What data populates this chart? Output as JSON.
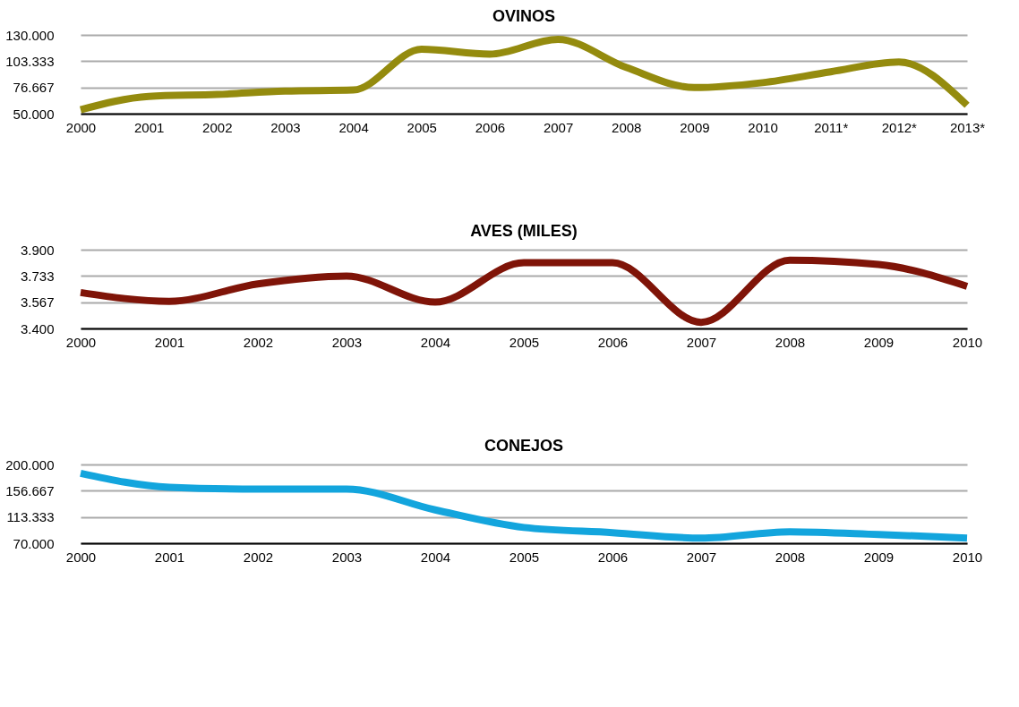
{
  "chart_data": [
    {
      "type": "line",
      "title": "OVINOS",
      "categories": [
        "2000",
        "2001",
        "2002",
        "2003",
        "2004",
        "2005",
        "2006",
        "2007",
        "2008",
        "2009",
        "2010",
        "2011*",
        "2012*",
        "2013*"
      ],
      "values": [
        54000,
        67500,
        69500,
        73000,
        74000,
        115500,
        110500,
        125500,
        97000,
        76500,
        81500,
        92500,
        102500,
        58500
      ],
      "color": "#948b0e",
      "ylim": [
        50000,
        130000
      ],
      "yticks": [
        {
          "value": 50000,
          "label": "50.000"
        },
        {
          "value": 76667,
          "label": "76.667"
        },
        {
          "value": 103333,
          "label": "103.333"
        },
        {
          "value": 130000,
          "label": "130.000"
        }
      ],
      "grid": "y"
    },
    {
      "type": "line",
      "title": "AVES (MILES)",
      "categories": [
        "2000",
        "2001",
        "2002",
        "2003",
        "2004",
        "2005",
        "2006",
        "2007",
        "2008",
        "2009",
        "2010"
      ],
      "values": [
        3.628,
        3.572,
        3.683,
        3.733,
        3.567,
        3.817,
        3.817,
        3.439,
        3.833,
        3.806,
        3.667
      ],
      "color": "#7f1408",
      "ylim": [
        3.4,
        3.9
      ],
      "yticks": [
        {
          "value": 3.4,
          "label": "3.400"
        },
        {
          "value": 3.567,
          "label": "3.567"
        },
        {
          "value": 3.733,
          "label": "3.733"
        },
        {
          "value": 3.9,
          "label": "3.900"
        }
      ],
      "grid": "y"
    },
    {
      "type": "line",
      "title": "CONEJOS",
      "categories": [
        "2000",
        "2001",
        "2002",
        "2003",
        "2004",
        "2005",
        "2006",
        "2007",
        "2008",
        "2009",
        "2010"
      ],
      "values": [
        185500,
        162500,
        159500,
        159500,
        125000,
        96000,
        87500,
        78500,
        89000,
        84500,
        78500
      ],
      "color": "#13a5dd",
      "ylim": [
        70000,
        200000
      ],
      "yticks": [
        {
          "value": 70000,
          "label": "70.000"
        },
        {
          "value": 113333,
          "label": "113.333"
        },
        {
          "value": 156667,
          "label": "156.667"
        },
        {
          "value": 200000,
          "label": "200.000"
        }
      ],
      "grid": "y"
    }
  ]
}
